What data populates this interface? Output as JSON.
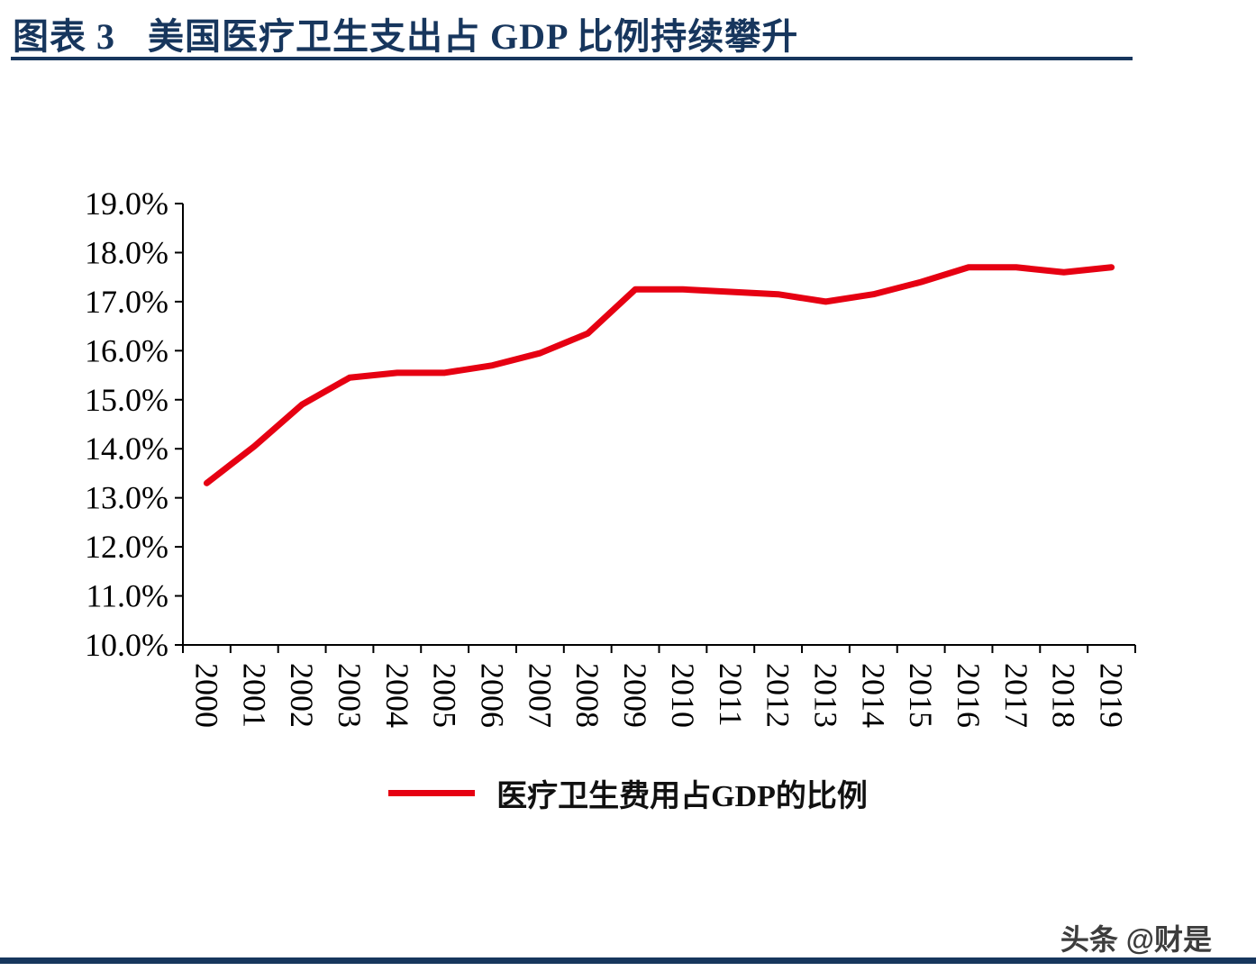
{
  "header": {
    "title_prefix": "图表 3",
    "title_text": "美国医疗卫生支出占 GDP 比例持续攀升",
    "accent_color": "#17365d"
  },
  "chart_data": {
    "type": "line",
    "title": "图表 3 美国医疗卫生支出占 GDP 比例持续攀升",
    "x": [
      "2000",
      "2001",
      "2002",
      "2003",
      "2004",
      "2005",
      "2006",
      "2007",
      "2008",
      "2009",
      "2010",
      "2011",
      "2012",
      "2013",
      "2014",
      "2015",
      "2016",
      "2017",
      "2018",
      "2019"
    ],
    "series": [
      {
        "name": "医疗卫生费用占GDP的比例",
        "color": "#e60012",
        "values": [
          13.3,
          14.05,
          14.9,
          15.45,
          15.55,
          15.55,
          15.7,
          15.95,
          16.35,
          17.25,
          17.25,
          17.2,
          17.15,
          17.0,
          17.15,
          17.4,
          17.7,
          17.7,
          17.6,
          17.7
        ]
      }
    ],
    "ylim": [
      10,
      19
    ],
    "ytick_labels": [
      "10.0%",
      "11.0%",
      "12.0%",
      "13.0%",
      "14.0%",
      "15.0%",
      "16.0%",
      "17.0%",
      "18.0%",
      "19.0%"
    ],
    "xlabel": "",
    "ylabel": "",
    "grid": false,
    "legend_position": "bottom",
    "axis_color": "#000000"
  },
  "footer": {
    "watermark": "头条 @财是",
    "bar_color": "#17365d"
  }
}
